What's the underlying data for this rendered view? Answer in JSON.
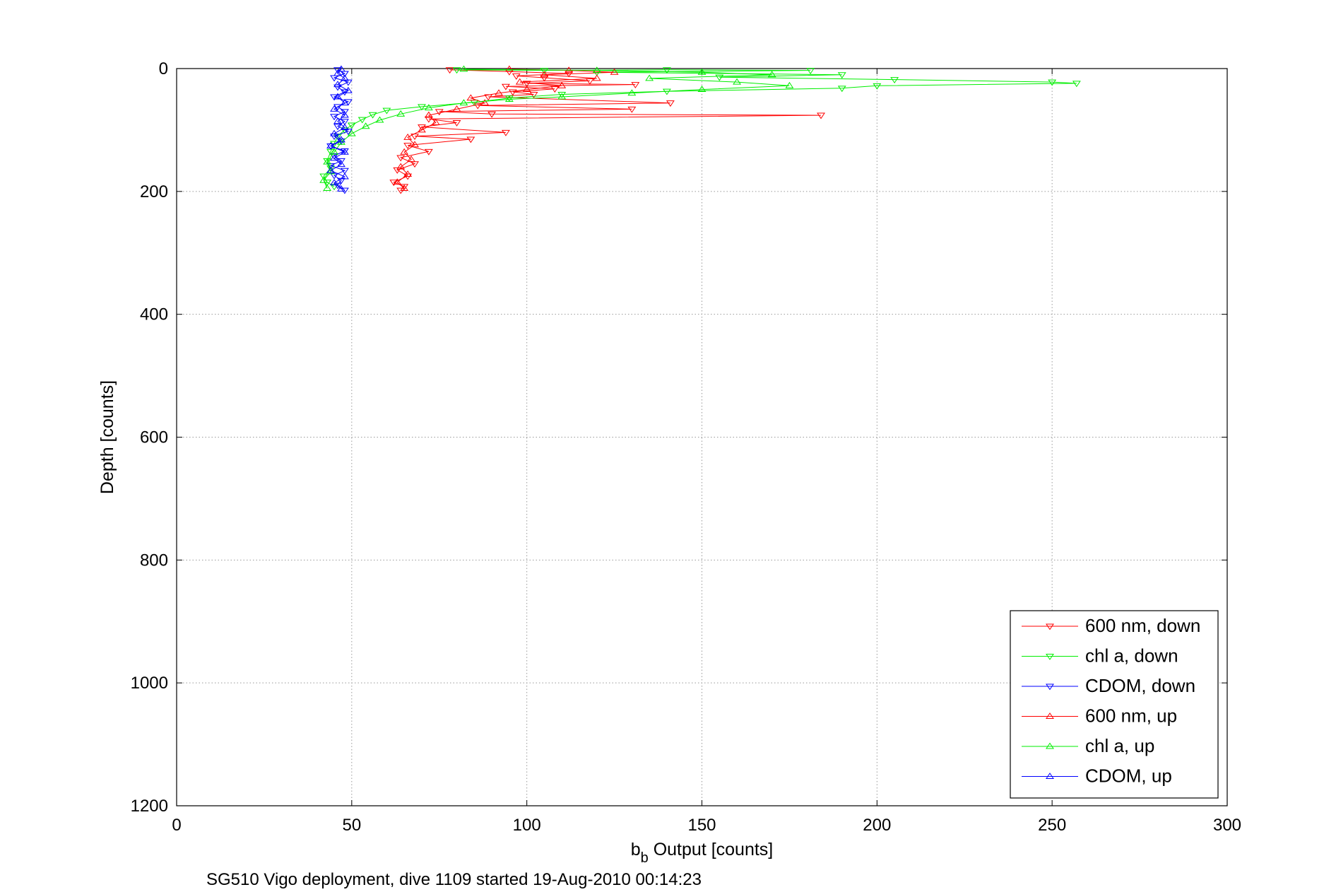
{
  "chart_data": {
    "type": "line",
    "xlabel_main": "b",
    "xlabel_sub": "b",
    "xlabel_rest": " Output [counts]",
    "ylabel": "Depth [counts]",
    "caption": "SG510 Vigo deployment, dive 1109 started 19-Aug-2010 00:14:23",
    "xlim": [
      0,
      300
    ],
    "ylim": [
      0,
      1200
    ],
    "y_reversed": true,
    "grid": true,
    "legend_position": "bottom-right",
    "xticks": [
      "0",
      "50",
      "100",
      "150",
      "200",
      "250",
      "300"
    ],
    "yticks": [
      "0",
      "200",
      "400",
      "600",
      "800",
      "1000",
      "1200"
    ],
    "series": [
      {
        "name": "600 nm, down",
        "color": "#ff0000",
        "marker": "triangle-down",
        "points": [
          [
            78,
            2
          ],
          [
            95,
            5
          ],
          [
            112,
            8
          ],
          [
            97,
            12
          ],
          [
            105,
            15
          ],
          [
            118,
            20
          ],
          [
            100,
            24
          ],
          [
            131,
            26
          ],
          [
            94,
            29
          ],
          [
            108,
            33
          ],
          [
            96,
            38
          ],
          [
            102,
            42
          ],
          [
            89,
            46
          ],
          [
            141,
            56
          ],
          [
            86,
            60
          ],
          [
            130,
            66
          ],
          [
            75,
            70
          ],
          [
            90,
            74
          ],
          [
            184,
            76
          ],
          [
            72,
            82
          ],
          [
            80,
            88
          ],
          [
            70,
            95
          ],
          [
            94,
            104
          ],
          [
            68,
            110
          ],
          [
            84,
            115
          ],
          [
            66,
            125
          ],
          [
            72,
            135
          ],
          [
            64,
            145
          ],
          [
            68,
            155
          ],
          [
            63,
            165
          ],
          [
            66,
            175
          ],
          [
            62,
            185
          ],
          [
            65,
            192
          ],
          [
            64,
            198
          ]
        ]
      },
      {
        "name": "chl a, down",
        "color": "#00ee00",
        "marker": "triangle-down",
        "points": [
          [
            80,
            2
          ],
          [
            105,
            3
          ],
          [
            140,
            2
          ],
          [
            181,
            3
          ],
          [
            120,
            6
          ],
          [
            190,
            10
          ],
          [
            155,
            14
          ],
          [
            205,
            18
          ],
          [
            250,
            22
          ],
          [
            257,
            24
          ],
          [
            200,
            28
          ],
          [
            190,
            32
          ],
          [
            140,
            37
          ],
          [
            110,
            42
          ],
          [
            95,
            48
          ],
          [
            85,
            55
          ],
          [
            70,
            62
          ],
          [
            60,
            68
          ],
          [
            56,
            75
          ],
          [
            53,
            83
          ],
          [
            50,
            92
          ],
          [
            48,
            100
          ],
          [
            46,
            110
          ],
          [
            45,
            122
          ],
          [
            44,
            135
          ],
          [
            43,
            150
          ],
          [
            44,
            162
          ],
          [
            42,
            175
          ],
          [
            43,
            185
          ],
          [
            45,
            192
          ]
        ]
      },
      {
        "name": "CDOM, down",
        "color": "#0000ff",
        "marker": "triangle-down",
        "points": [
          [
            46,
            2
          ],
          [
            48,
            8
          ],
          [
            45,
            15
          ],
          [
            49,
            22
          ],
          [
            46,
            30
          ],
          [
            48,
            38
          ],
          [
            45,
            46
          ],
          [
            49,
            54
          ],
          [
            46,
            62
          ],
          [
            48,
            70
          ],
          [
            45,
            78
          ],
          [
            48,
            86
          ],
          [
            46,
            94
          ],
          [
            49,
            102
          ],
          [
            45,
            110
          ],
          [
            47,
            118
          ],
          [
            44,
            126
          ],
          [
            48,
            134
          ],
          [
            45,
            142
          ],
          [
            47,
            150
          ],
          [
            44,
            158
          ],
          [
            48,
            166
          ],
          [
            45,
            174
          ],
          [
            47,
            182
          ],
          [
            46,
            190
          ],
          [
            48,
            198
          ]
        ]
      },
      {
        "name": "600 nm, up",
        "color": "#ff0000",
        "marker": "triangle-up",
        "points": [
          [
            65,
            195
          ],
          [
            63,
            185
          ],
          [
            66,
            172
          ],
          [
            64,
            160
          ],
          [
            67,
            148
          ],
          [
            65,
            136
          ],
          [
            68,
            124
          ],
          [
            66,
            112
          ],
          [
            70,
            100
          ],
          [
            74,
            88
          ],
          [
            72,
            76
          ],
          [
            80,
            66
          ],
          [
            88,
            56
          ],
          [
            84,
            48
          ],
          [
            92,
            40
          ],
          [
            100,
            34
          ],
          [
            110,
            28
          ],
          [
            98,
            22
          ],
          [
            120,
            16
          ],
          [
            105,
            10
          ],
          [
            125,
            6
          ],
          [
            112,
            3
          ],
          [
            95,
            1
          ]
        ]
      },
      {
        "name": "chl a, up",
        "color": "#00ee00",
        "marker": "triangle-up",
        "points": [
          [
            43,
            195
          ],
          [
            42,
            182
          ],
          [
            44,
            168
          ],
          [
            43,
            152
          ],
          [
            45,
            136
          ],
          [
            47,
            120
          ],
          [
            50,
            106
          ],
          [
            54,
            94
          ],
          [
            58,
            84
          ],
          [
            64,
            74
          ],
          [
            72,
            64
          ],
          [
            82,
            56
          ],
          [
            95,
            50
          ],
          [
            110,
            46
          ],
          [
            130,
            40
          ],
          [
            150,
            34
          ],
          [
            175,
            28
          ],
          [
            160,
            22
          ],
          [
            135,
            16
          ],
          [
            170,
            10
          ],
          [
            150,
            6
          ],
          [
            120,
            3
          ],
          [
            82,
            1
          ]
        ]
      },
      {
        "name": "CDOM, up",
        "color": "#0000ff",
        "marker": "triangle-up",
        "points": [
          [
            47,
            196
          ],
          [
            45,
            186
          ],
          [
            48,
            176
          ],
          [
            44,
            166
          ],
          [
            47,
            156
          ],
          [
            45,
            146
          ],
          [
            48,
            136
          ],
          [
            44,
            126
          ],
          [
            47,
            116
          ],
          [
            45,
            106
          ],
          [
            48,
            96
          ],
          [
            46,
            86
          ],
          [
            48,
            76
          ],
          [
            45,
            66
          ],
          [
            48,
            56
          ],
          [
            46,
            46
          ],
          [
            49,
            36
          ],
          [
            46,
            26
          ],
          [
            48,
            16
          ],
          [
            46,
            8
          ],
          [
            47,
            1
          ]
        ]
      }
    ]
  }
}
